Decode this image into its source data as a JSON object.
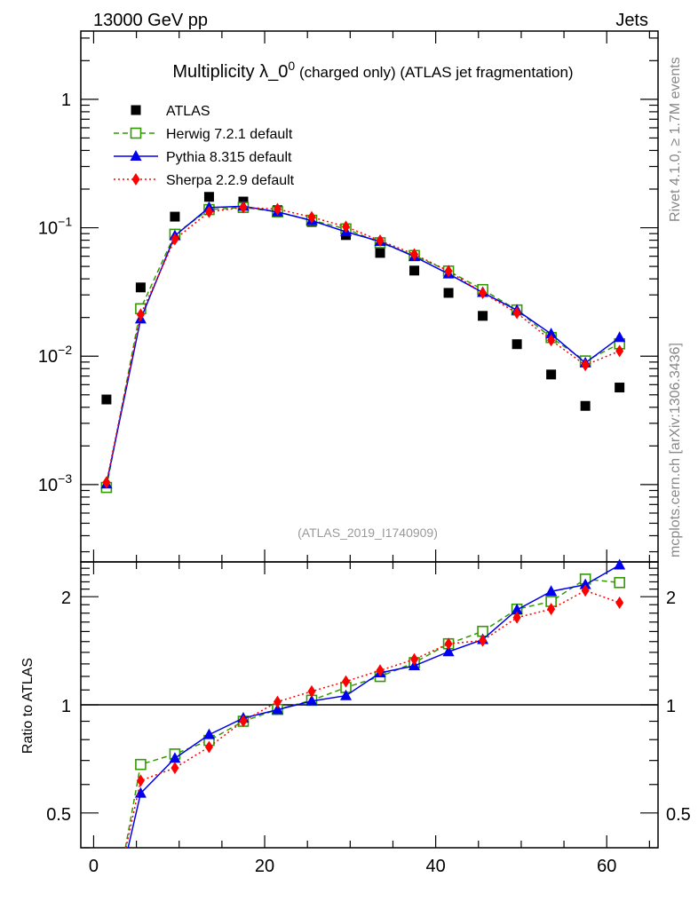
{
  "header": {
    "left": "13000 GeV pp",
    "right": "Jets"
  },
  "side_labels": {
    "rivet": "Rivet 4.1.0, ≥ 1.7M events",
    "mcplots": "mcplots.cern.ch [arXiv:1306.3436]"
  },
  "chart_data": [
    {
      "type": "scatter",
      "title": "Multiplicity λ_0⁰ (charged only) (ATLAS jet fragmentation)",
      "title_main": "Multiplicity λ_0",
      "title_sup": "0",
      "title_rest": " (charged only) (ATLAS jet fragmentation)",
      "analysis": "(ATLAS_2019_I1740909)",
      "xlim": [
        -1.5,
        66
      ],
      "ylim": [
        0.00025,
        3.4
      ],
      "yscale": "log",
      "yticklabels": [
        {
          "v": 1,
          "t": "1"
        },
        {
          "v": 0.1,
          "t": "10",
          "e": "−1"
        },
        {
          "v": 0.01,
          "t": "10",
          "e": "−2"
        },
        {
          "v": 0.001,
          "t": "10",
          "e": "−3"
        }
      ],
      "legend_position": "top-left",
      "x": [
        1.5,
        5.5,
        9.5,
        13.5,
        17.5,
        21.5,
        25.5,
        29.5,
        33.5,
        37.5,
        41.5,
        45.5,
        49.5,
        53.5,
        57.5,
        61.5
      ],
      "series": [
        {
          "name": "ATLAS",
          "color": "#000000",
          "marker": "square",
          "values": [
            0.0046,
            0.0343,
            0.122,
            0.174,
            0.16,
            0.137,
            0.111,
            0.0877,
            0.0637,
            0.0464,
            0.0311,
            0.0206,
            0.0124,
            0.0072,
            0.0041,
            0.0057
          ]
        },
        {
          "name": "Herwig 7.2.1 default",
          "color": "#339900",
          "marker": "open-square",
          "dash": "6,4",
          "values": [
            0.00095,
            0.0234,
            0.089,
            0.1385,
            0.144,
            0.133,
            0.1143,
            0.098,
            0.0764,
            0.0608,
            0.046,
            0.033,
            0.0229,
            0.01397,
            0.00918,
            0.01248
          ]
        },
        {
          "name": "Pythia 8.315 default",
          "color": "#0000ee",
          "marker": "triangle",
          "dash": "",
          "values": [
            0.00101,
            0.01945,
            0.0866,
            0.1437,
            0.1469,
            0.1328,
            0.1137,
            0.093,
            0.0782,
            0.0596,
            0.0437,
            0.0313,
            0.0228,
            0.0149,
            0.00886,
            0.01397
          ]
        },
        {
          "name": "Sherpa 2.2.9 default",
          "color": "#ff0000",
          "marker": "diamond",
          "dash": "2,3",
          "values": [
            0.00104,
            0.0211,
            0.0814,
            0.1328,
            0.1442,
            0.1397,
            0.121,
            0.1019,
            0.0794,
            0.0621,
            0.046,
            0.0311,
            0.0217,
            0.0133,
            0.00853,
            0.01097
          ]
        }
      ]
    },
    {
      "type": "line",
      "ylabel": "Ratio to ATLAS",
      "yscale": "log",
      "ylim": [
        0.4,
        2.5
      ],
      "xlim": [
        -1.5,
        66
      ],
      "yticklabels": [
        {
          "v": 2,
          "t": "2"
        },
        {
          "v": 1,
          "t": "1"
        },
        {
          "v": 0.5,
          "t": "0.5"
        }
      ],
      "xticklabels": [
        {
          "v": 0,
          "t": "0"
        },
        {
          "v": 20,
          "t": "20"
        },
        {
          "v": 40,
          "t": "40"
        },
        {
          "v": 60,
          "t": "60"
        }
      ],
      "reference": 1
    }
  ]
}
